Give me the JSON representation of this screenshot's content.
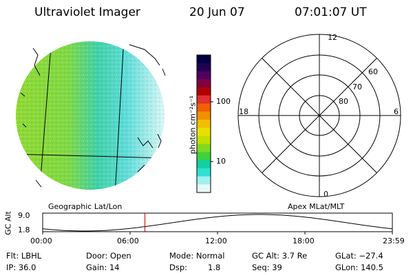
{
  "header": {
    "instrument": "Ultraviolet Imager",
    "date": "20 Jun 07",
    "time": "07:01:07 UT"
  },
  "image_panel": {
    "caption": "Geographic Lat/Lon"
  },
  "colorbar": {
    "unit_label": "photon cm⁻²s⁻¹",
    "ticks": [
      "100",
      "10"
    ],
    "colors": [
      "#000040",
      "#200050",
      "#500060",
      "#800040",
      "#b00000",
      "#e03030",
      "#f06000",
      "#f09000",
      "#f0c000",
      "#e8e000",
      "#c0e000",
      "#80d820",
      "#40d040",
      "#10d0a0",
      "#30e0d0",
      "#a0f0f0",
      "#e8f8f8"
    ]
  },
  "polar_panel": {
    "caption": "Apex MLat/MLT",
    "mlt_labels": {
      "top": "12",
      "left": "18",
      "right": "6",
      "bottom": "0"
    },
    "mlat_labels": [
      "60",
      "70",
      "80"
    ]
  },
  "altitude_strip": {
    "ylabel": "GC Alt",
    "yticks": [
      "9.0",
      "1.8"
    ],
    "xticks": [
      "00:00",
      "06:00",
      "12:00",
      "18:00",
      "23:59"
    ],
    "marker_time": "07:01"
  },
  "info": {
    "flt": "Flt: LBHL",
    "ip": "IP: 36.0",
    "door": "Door: Open",
    "gain": "Gain: 14",
    "mode": "Mode: Normal",
    "dsp_label": "Dsp:",
    "dsp_value": "1.8",
    "gc_alt": "GC Alt: 3.7 Re",
    "seq": "Seq: 39",
    "glat": "GLat: −27.4",
    "glon": "GLon: 140.5"
  },
  "colors": {
    "marker": "#c00000",
    "axes": "#000000"
  }
}
